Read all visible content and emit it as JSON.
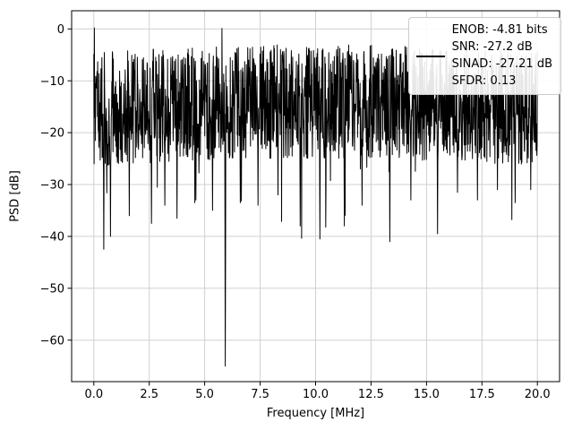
{
  "chart_data": {
    "type": "line",
    "title": "",
    "xlabel": "Frequency [MHz]",
    "ylabel": "PSD [dB]",
    "xlim": [
      -1,
      21
    ],
    "ylim": [
      -68,
      3.5
    ],
    "grid": true,
    "background_color": "#ffffff",
    "grid_color": "#d0d0d0",
    "spine_color": "#000000",
    "xticks": [
      {
        "v": 0,
        "label": "0.0"
      },
      {
        "v": 2.5,
        "label": "2.5"
      },
      {
        "v": 5,
        "label": "5.0"
      },
      {
        "v": 7.5,
        "label": "7.5"
      },
      {
        "v": 10,
        "label": "10.0"
      },
      {
        "v": 12.5,
        "label": "12.5"
      },
      {
        "v": 15,
        "label": "15.0"
      },
      {
        "v": 17.5,
        "label": "17.5"
      },
      {
        "v": 20,
        "label": "20.0"
      }
    ],
    "yticks": [
      {
        "v": 0,
        "label": "0"
      },
      {
        "v": -10,
        "label": "−10"
      },
      {
        "v": -20,
        "label": "−20"
      },
      {
        "v": -30,
        "label": "−30"
      },
      {
        "v": -40,
        "label": "−40"
      },
      {
        "v": -50,
        "label": "−50"
      },
      {
        "v": -60,
        "label": "−60"
      }
    ],
    "legend": {
      "position": "upper right",
      "handle_color": "#000000",
      "lines": [
        "ENOB: -4.81 bits",
        "SNR: -27.2 dB",
        "SINAD: -27.21 dB",
        "SFDR: 0.13"
      ]
    },
    "series": {
      "name": "psd-noise-trace",
      "color": "#000000",
      "x_range": [
        0,
        20
      ],
      "n_points": 1600,
      "seed": 7,
      "noise_envelope": {
        "top_base": -4.5,
        "top_bow": 1.5,
        "band_depth": 22,
        "dip_prob": 0.03,
        "dip_extra_min": 5,
        "dip_extra_max": 18
      },
      "peaks": [
        {
          "x": 0.02,
          "y": 0.2
        },
        {
          "x": 5.78,
          "y": 0.1
        }
      ],
      "deep_dips": [
        {
          "x": 0.45,
          "y": -42.5
        },
        {
          "x": 0.75,
          "y": -40
        },
        {
          "x": 1.6,
          "y": -36
        },
        {
          "x": 2.6,
          "y": -37.5
        },
        {
          "x": 3.2,
          "y": -34
        },
        {
          "x": 3.75,
          "y": -36.5
        },
        {
          "x": 4.6,
          "y": -33
        },
        {
          "x": 5.35,
          "y": -35
        },
        {
          "x": 5.93,
          "y": -65
        },
        {
          "x": 6.6,
          "y": -33.5
        },
        {
          "x": 7.4,
          "y": -34
        },
        {
          "x": 8.3,
          "y": -32
        },
        {
          "x": 9.3,
          "y": -38
        },
        {
          "x": 10.2,
          "y": -40.5
        },
        {
          "x": 11.3,
          "y": -38
        },
        {
          "x": 12.1,
          "y": -34
        },
        {
          "x": 13.35,
          "y": -41
        },
        {
          "x": 14.3,
          "y": -33
        },
        {
          "x": 15.5,
          "y": -39.5
        },
        {
          "x": 16.4,
          "y": -31.5
        },
        {
          "x": 17.3,
          "y": -33
        },
        {
          "x": 18.2,
          "y": -31
        },
        {
          "x": 19.0,
          "y": -33.5
        },
        {
          "x": 19.7,
          "y": -31
        }
      ]
    }
  }
}
